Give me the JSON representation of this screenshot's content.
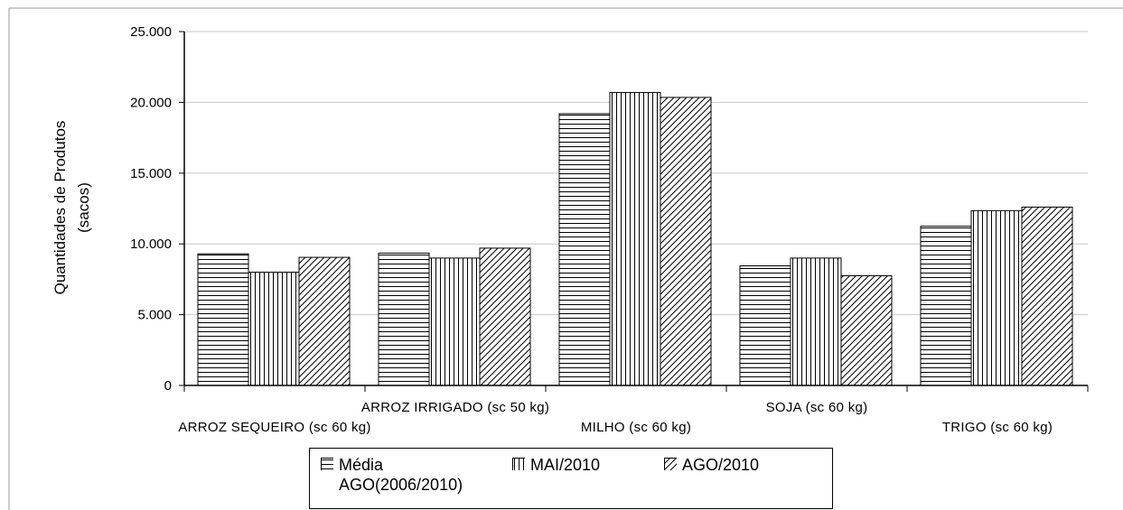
{
  "chart_data": {
    "type": "bar",
    "categories": [
      "ARROZ SEQUEIRO (sc 60 kg)",
      "ARROZ IRRIGADO (sc 50 kg)",
      "MILHO (sc 60 kg)",
      "SOJA (sc 60 kg)",
      "TRIGO (sc 60 kg)"
    ],
    "series": [
      {
        "name": "Média AGO(2006/2010)",
        "name_lines": [
          "Média",
          "AGO(2006/2010)"
        ],
        "pattern": "horizontal",
        "values": [
          9300,
          9350,
          19200,
          8450,
          11250
        ]
      },
      {
        "name": "MAI/2010",
        "name_lines": [
          "MAI/2010"
        ],
        "pattern": "vertical",
        "values": [
          8000,
          9000,
          20700,
          9000,
          12350
        ]
      },
      {
        "name": "AGO/2010",
        "name_lines": [
          "AGO/2010"
        ],
        "pattern": "diagonal",
        "values": [
          9050,
          9700,
          20350,
          7750,
          12600
        ]
      }
    ],
    "ylabel_lines": [
      "Quantidades de Produtos",
      "(sacos)"
    ],
    "ylim": [
      0,
      25000
    ],
    "yticks": [
      0,
      5000,
      10000,
      15000,
      20000,
      25000
    ],
    "ytick_labels": [
      "0",
      "5.000",
      "10.000",
      "15.000",
      "20.000",
      "25.000"
    ],
    "grid": true,
    "legend_position": "bottom"
  }
}
